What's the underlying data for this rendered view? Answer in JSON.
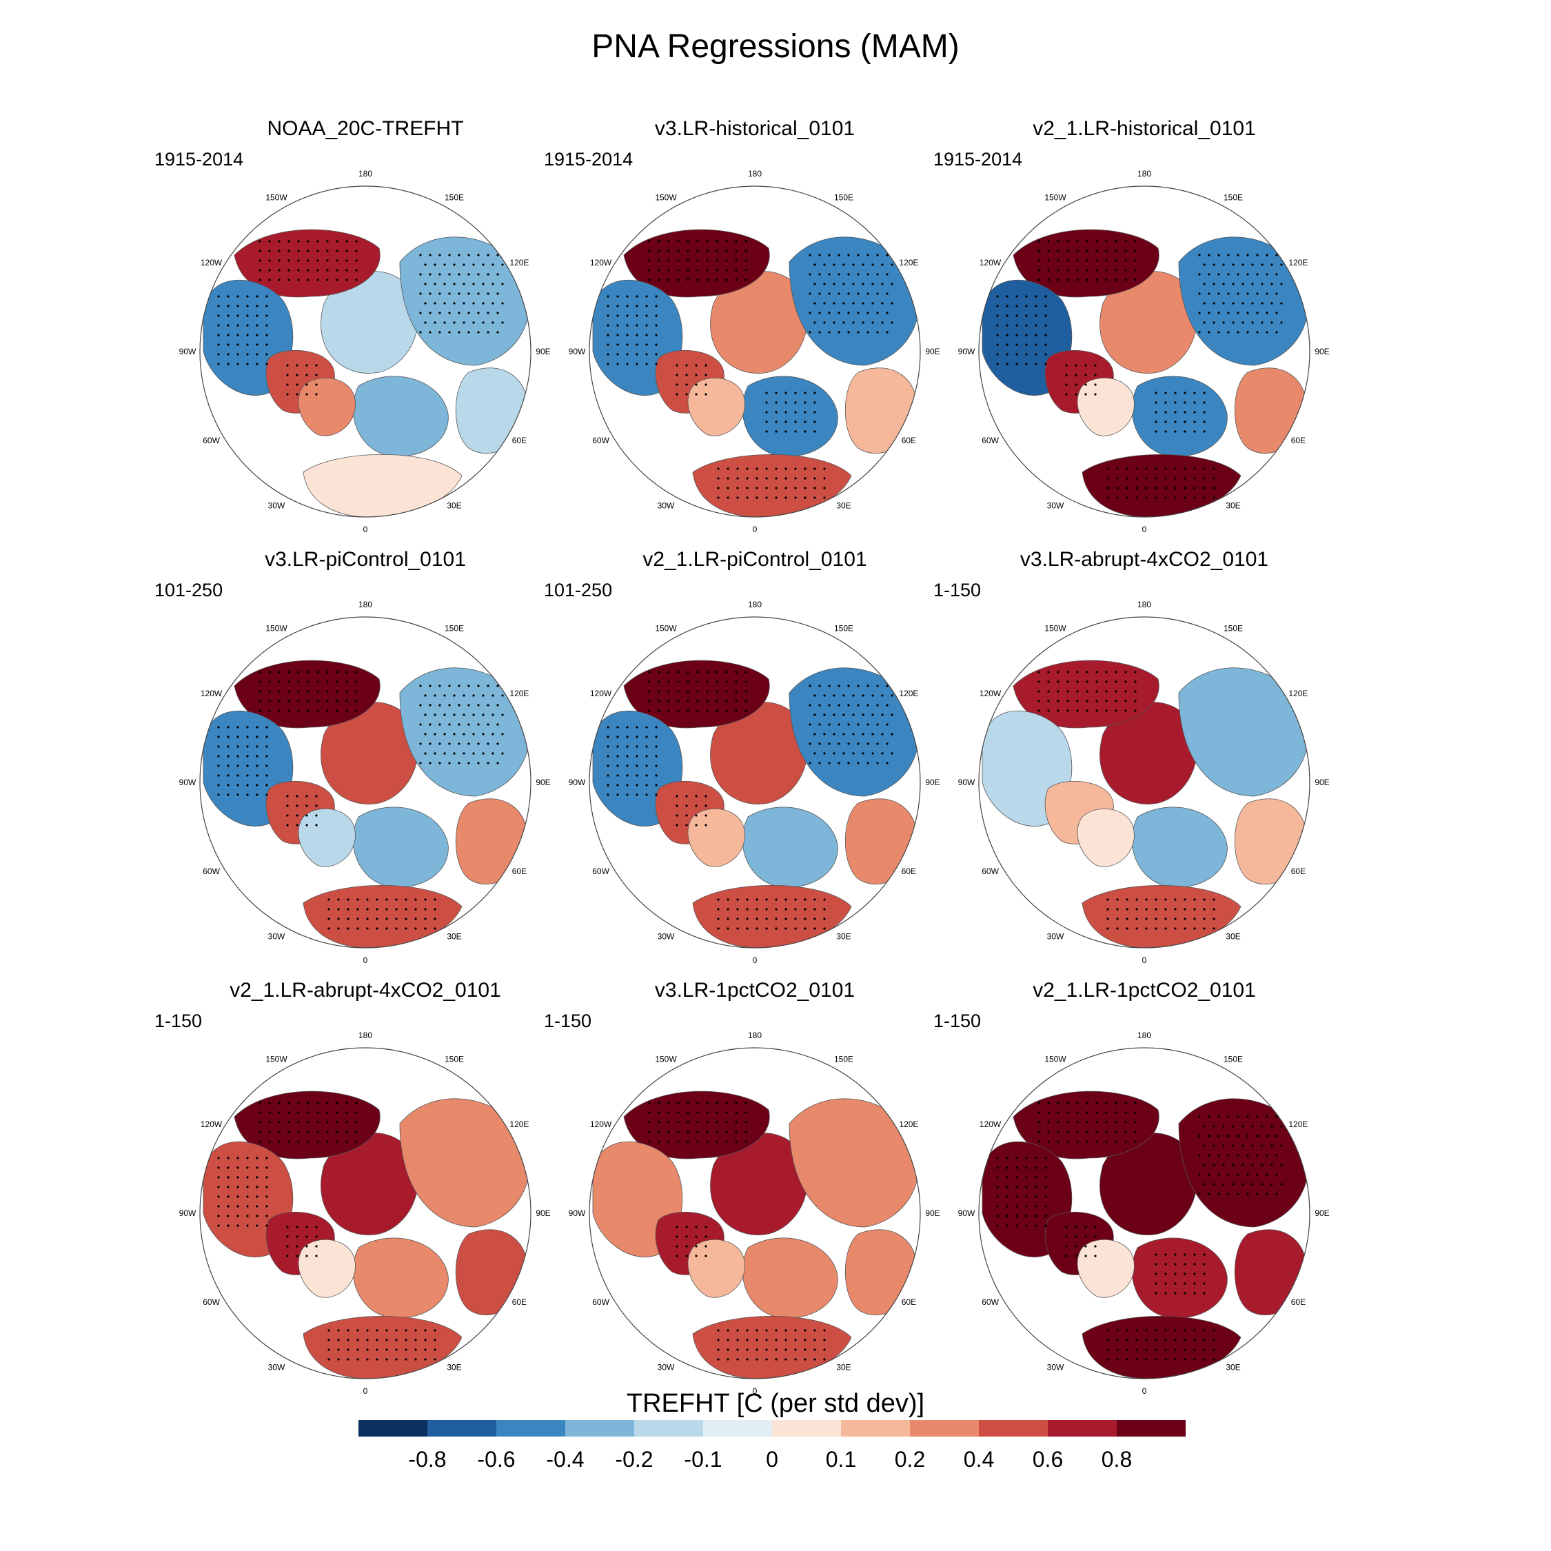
{
  "title": "PNA Regressions (MAM)",
  "chart_data": {
    "type": "heatmap",
    "projection": "north-polar-stereographic",
    "variable": "TREFHT",
    "colorbar": {
      "label": "TREFHT [C (per std dev)]",
      "tick_labels": [
        "-0.8",
        "-0.6",
        "-0.4",
        "-0.2",
        "-0.1",
        "0",
        "0.1",
        "0.2",
        "0.4",
        "0.6",
        "0.8"
      ],
      "colors": [
        "#0b2f5e",
        "#1f5fa0",
        "#3b86c0",
        "#7db6d9",
        "#b9d8ea",
        "#e2eef5",
        "#fbe3d6",
        "#f6b89a",
        "#e8896b",
        "#cd4f44",
        "#a71b2c",
        "#6b0017"
      ]
    },
    "longitude_labels": [
      "180",
      "150E",
      "120E",
      "90E",
      "60E",
      "30E",
      "0",
      "30W",
      "60W",
      "90W",
      "120W",
      "150W"
    ],
    "panels": [
      {
        "title": "NOAA_20C-TREFHT",
        "period": "1915-2014",
        "region_values": {
          "north_america": -0.6,
          "alaska": 0.7,
          "canada_east": 0.4,
          "greenland": 0.2,
          "europe": -0.3,
          "siberia": -0.4,
          "east_asia": -0.2,
          "north_africa": 0.0,
          "arctic": -0.2
        }
      },
      {
        "title": "v3.LR-historical_0101",
        "period": "1915-2014",
        "region_values": {
          "north_america": -0.5,
          "alaska": 0.8,
          "canada_east": 0.4,
          "greenland": 0.1,
          "europe": -0.6,
          "siberia": -0.5,
          "east_asia": 0.1,
          "north_africa": 0.4,
          "arctic": 0.3
        }
      },
      {
        "title": "v2_1.LR-historical_0101",
        "period": "1915-2014",
        "region_values": {
          "north_america": -0.7,
          "alaska": 0.8,
          "canada_east": 0.7,
          "greenland": 0.0,
          "europe": -0.5,
          "siberia": -0.5,
          "east_asia": 0.3,
          "north_africa": 0.8,
          "arctic": 0.2
        }
      },
      {
        "title": "v3.LR-piControl_0101",
        "period": "101-250",
        "region_values": {
          "north_america": -0.5,
          "alaska": 0.8,
          "canada_east": 0.5,
          "greenland": -0.2,
          "europe": -0.3,
          "siberia": -0.4,
          "east_asia": 0.2,
          "north_africa": 0.5,
          "arctic": 0.4
        }
      },
      {
        "title": "v2_1.LR-piControl_0101",
        "period": "101-250",
        "region_values": {
          "north_america": -0.6,
          "alaska": 0.8,
          "canada_east": 0.4,
          "greenland": 0.1,
          "europe": -0.3,
          "siberia": -0.5,
          "east_asia": 0.3,
          "north_africa": 0.5,
          "arctic": 0.5
        }
      },
      {
        "title": "v3.LR-abrupt-4xCO2_0101",
        "period": "1-150",
        "region_values": {
          "north_america": -0.2,
          "alaska": 0.6,
          "canada_east": 0.1,
          "greenland": 0.0,
          "europe": -0.3,
          "siberia": -0.3,
          "east_asia": 0.1,
          "north_africa": 0.4,
          "arctic": 0.6
        }
      },
      {
        "title": "v2_1.LR-abrupt-4xCO2_0101",
        "period": "1-150",
        "region_values": {
          "north_america": 0.5,
          "alaska": 0.8,
          "canada_east": 0.6,
          "greenland": 0.0,
          "europe": 0.2,
          "siberia": 0.3,
          "east_asia": 0.4,
          "north_africa": 0.5,
          "arctic": 0.7
        }
      },
      {
        "title": "v3.LR-1pctCO2_0101",
        "period": "1-150",
        "region_values": {
          "north_america": 0.3,
          "alaska": 0.8,
          "canada_east": 0.6,
          "greenland": 0.1,
          "europe": 0.3,
          "siberia": 0.2,
          "east_asia": 0.2,
          "north_africa": 0.5,
          "arctic": 0.7
        }
      },
      {
        "title": "v2_1.LR-1pctCO2_0101",
        "period": "1-150",
        "region_values": {
          "north_america": 0.8,
          "alaska": 0.9,
          "canada_east": 0.8,
          "greenland": 0.0,
          "europe": 0.7,
          "siberia": 0.8,
          "east_asia": 0.6,
          "north_africa": 0.9,
          "arctic": 0.8
        }
      }
    ]
  }
}
